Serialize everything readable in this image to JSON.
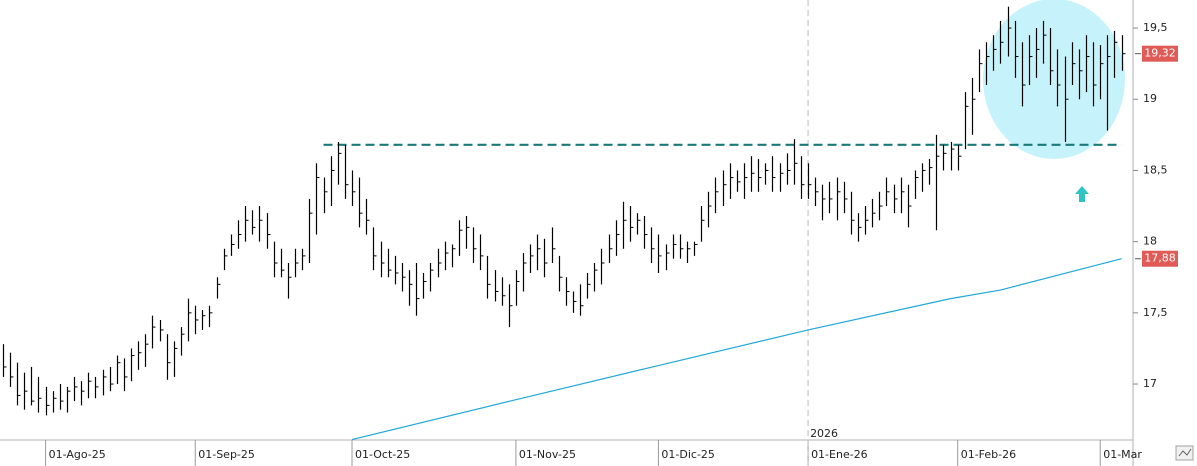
{
  "chart_data": {
    "type": "ohlc",
    "color": "#000000",
    "high": [
      17.28,
      17.22,
      17.15,
      17.08,
      17.12,
      17.05,
      16.98,
      16.95,
      17.0,
      16.98,
      17.05,
      17.02,
      17.08,
      17.05,
      17.1,
      17.12,
      17.2,
      17.18,
      17.25,
      17.3,
      17.35,
      17.48,
      17.45,
      17.35,
      17.3,
      17.4,
      17.6,
      17.55,
      17.52,
      17.55,
      17.75,
      17.95,
      18.05,
      18.15,
      18.25,
      18.22,
      18.25,
      18.2,
      18.0,
      17.95,
      17.85,
      17.95,
      17.95,
      18.3,
      18.55,
      18.45,
      18.6,
      18.7,
      18.68,
      18.5,
      18.45,
      18.3,
      18.1,
      18.0,
      17.95,
      17.9,
      17.85,
      17.8,
      17.85,
      17.78,
      17.85,
      17.95,
      18.0,
      17.98,
      18.15,
      18.18,
      18.1,
      18.05,
      17.9,
      17.8,
      17.75,
      17.7,
      17.8,
      17.92,
      17.98,
      18.05,
      18.02,
      18.1,
      17.9,
      17.75,
      17.65,
      17.7,
      17.78,
      17.85,
      17.95,
      18.05,
      18.15,
      18.28,
      18.25,
      18.2,
      18.18,
      18.1,
      18.05,
      17.98,
      18.05,
      18.05,
      18.0,
      18.0,
      18.25,
      18.35,
      18.45,
      18.5,
      18.55,
      18.5,
      18.55,
      18.6,
      18.58,
      18.55,
      18.6,
      18.55,
      18.62,
      18.72,
      18.6,
      18.55,
      18.45,
      18.4,
      18.42,
      18.45,
      18.42,
      18.35,
      18.2,
      18.25,
      18.3,
      18.35,
      18.45,
      18.4,
      18.45,
      18.4,
      18.5,
      18.55,
      18.58,
      18.75,
      18.68,
      18.7,
      18.68,
      19.05,
      19.15,
      19.35,
      19.4,
      19.45,
      19.55,
      19.65,
      19.55,
      19.4,
      19.45,
      19.5,
      19.55,
      19.5,
      19.35,
      19.3,
      19.4,
      19.35,
      19.45,
      19.4,
      19.38,
      19.45,
      19.48,
      19.45
    ],
    "low": [
      17.05,
      16.98,
      16.85,
      16.82,
      16.85,
      16.8,
      16.78,
      16.8,
      16.82,
      16.8,
      16.88,
      16.85,
      16.9,
      16.9,
      16.92,
      16.95,
      17.0,
      16.95,
      17.02,
      17.1,
      17.12,
      17.25,
      17.3,
      17.03,
      17.05,
      17.2,
      17.3,
      17.35,
      17.38,
      17.4,
      17.6,
      17.8,
      17.9,
      17.95,
      18.0,
      18.05,
      18.0,
      17.95,
      17.75,
      17.75,
      17.6,
      17.75,
      17.8,
      17.85,
      18.05,
      18.2,
      18.25,
      18.4,
      18.3,
      18.25,
      18.1,
      18.05,
      17.8,
      17.75,
      17.75,
      17.7,
      17.65,
      17.55,
      17.48,
      17.6,
      17.65,
      17.75,
      17.8,
      17.82,
      17.9,
      17.95,
      17.85,
      17.8,
      17.6,
      17.58,
      17.55,
      17.4,
      17.55,
      17.65,
      17.78,
      17.8,
      17.75,
      17.85,
      17.65,
      17.55,
      17.5,
      17.48,
      17.6,
      17.65,
      17.7,
      17.85,
      17.9,
      17.95,
      18.0,
      18.05,
      17.95,
      17.85,
      17.78,
      17.8,
      17.88,
      17.88,
      17.85,
      17.9,
      18.0,
      18.1,
      18.2,
      18.25,
      18.3,
      18.35,
      18.3,
      18.35,
      18.35,
      18.4,
      18.35,
      18.35,
      18.4,
      18.4,
      18.3,
      18.3,
      18.25,
      18.15,
      18.2,
      18.15,
      18.2,
      18.05,
      18.0,
      18.05,
      18.1,
      18.15,
      18.25,
      18.2,
      18.2,
      18.1,
      18.3,
      18.35,
      18.4,
      18.08,
      18.5,
      18.5,
      18.5,
      18.65,
      18.75,
      19.05,
      19.1,
      19.2,
      19.25,
      19.3,
      19.15,
      18.95,
      19.1,
      19.15,
      19.25,
      19.1,
      18.95,
      18.7,
      19.1,
      19.0,
      19.05,
      18.95,
      19.0,
      18.78,
      19.15,
      19.2
    ],
    "close": [
      17.12,
      17.05,
      16.92,
      16.95,
      16.88,
      16.9,
      16.85,
      16.9,
      16.88,
      16.95,
      16.98,
      16.95,
      17.02,
      16.98,
      17.05,
      17.0,
      17.15,
      17.05,
      17.2,
      17.22,
      17.28,
      17.4,
      17.38,
      17.15,
      17.25,
      17.35,
      17.5,
      17.45,
      17.48,
      17.5,
      17.7,
      17.9,
      17.98,
      18.05,
      18.15,
      18.1,
      18.15,
      18.05,
      17.85,
      17.8,
      17.75,
      17.85,
      17.9,
      18.2,
      18.45,
      18.35,
      18.5,
      18.62,
      18.4,
      18.35,
      18.2,
      18.15,
      17.9,
      17.85,
      17.8,
      17.78,
      17.75,
      17.7,
      17.6,
      17.72,
      17.8,
      17.85,
      17.92,
      17.95,
      18.08,
      18.1,
      17.95,
      17.9,
      17.7,
      17.65,
      17.62,
      17.55,
      17.72,
      17.85,
      17.9,
      17.95,
      17.85,
      17.95,
      17.75,
      17.65,
      17.58,
      17.55,
      17.7,
      17.8,
      17.85,
      17.95,
      18.05,
      18.15,
      18.1,
      18.15,
      18.05,
      17.95,
      17.9,
      17.92,
      17.98,
      17.95,
      17.95,
      17.98,
      18.15,
      18.25,
      18.35,
      18.4,
      18.45,
      18.42,
      18.45,
      18.48,
      18.45,
      18.5,
      18.45,
      18.48,
      18.5,
      18.55,
      18.4,
      18.4,
      18.35,
      18.3,
      18.3,
      18.35,
      18.3,
      18.15,
      18.1,
      18.15,
      18.2,
      18.25,
      18.35,
      18.3,
      18.35,
      18.25,
      18.45,
      18.5,
      18.52,
      18.6,
      18.62,
      18.65,
      18.6,
      18.95,
      19.0,
      19.25,
      19.3,
      19.35,
      19.4,
      19.5,
      19.3,
      19.1,
      19.3,
      19.35,
      19.45,
      19.2,
      19.1,
      19.0,
      19.25,
      19.2,
      19.3,
      19.1,
      19.25,
      19.3,
      19.4,
      19.32
    ],
    "moving_average": {
      "color": "#1fa8d8",
      "x": [
        49,
        72,
        92,
        113,
        133,
        140,
        157
      ],
      "values": [
        16.61,
        16.89,
        17.13,
        17.38,
        17.6,
        17.66,
        17.88
      ]
    },
    "resistance": {
      "value": 18.68,
      "from": 45,
      "to": 157,
      "color": "#1a7a7a"
    },
    "xlim": [
      -0.4,
      158.6
    ],
    "ylim": [
      16.607,
      19.697
    ],
    "yticks": [
      {
        "value": 17,
        "label": "17"
      },
      {
        "value": 17.5,
        "label": "17,5"
      },
      {
        "value": 18,
        "label": "18"
      },
      {
        "value": 18.5,
        "label": "18,5"
      },
      {
        "value": 19,
        "label": "19"
      },
      {
        "value": 19.5,
        "label": "19,5"
      }
    ],
    "xticks": [
      {
        "value": 6,
        "label": "01-Ago-25"
      },
      {
        "value": 27,
        "label": "01-Sep-25"
      },
      {
        "value": 49,
        "label": "01-Oct-25"
      },
      {
        "value": 72,
        "label": "01-Nov-25"
      },
      {
        "value": 92,
        "label": "01-Dic-25"
      },
      {
        "value": 113,
        "label": "01-Ene-26"
      },
      {
        "value": 134,
        "label": "01-Feb-26"
      },
      {
        "value": 154,
        "label": "01-Mar"
      }
    ],
    "year_marker": {
      "value": 113,
      "label": "2026"
    },
    "last_price": {
      "value": 19.32,
      "label": "19,32",
      "color": "#e05a56"
    },
    "ma_last": {
      "value": 17.88,
      "label": "17,88",
      "color": "#e05a56"
    }
  }
}
